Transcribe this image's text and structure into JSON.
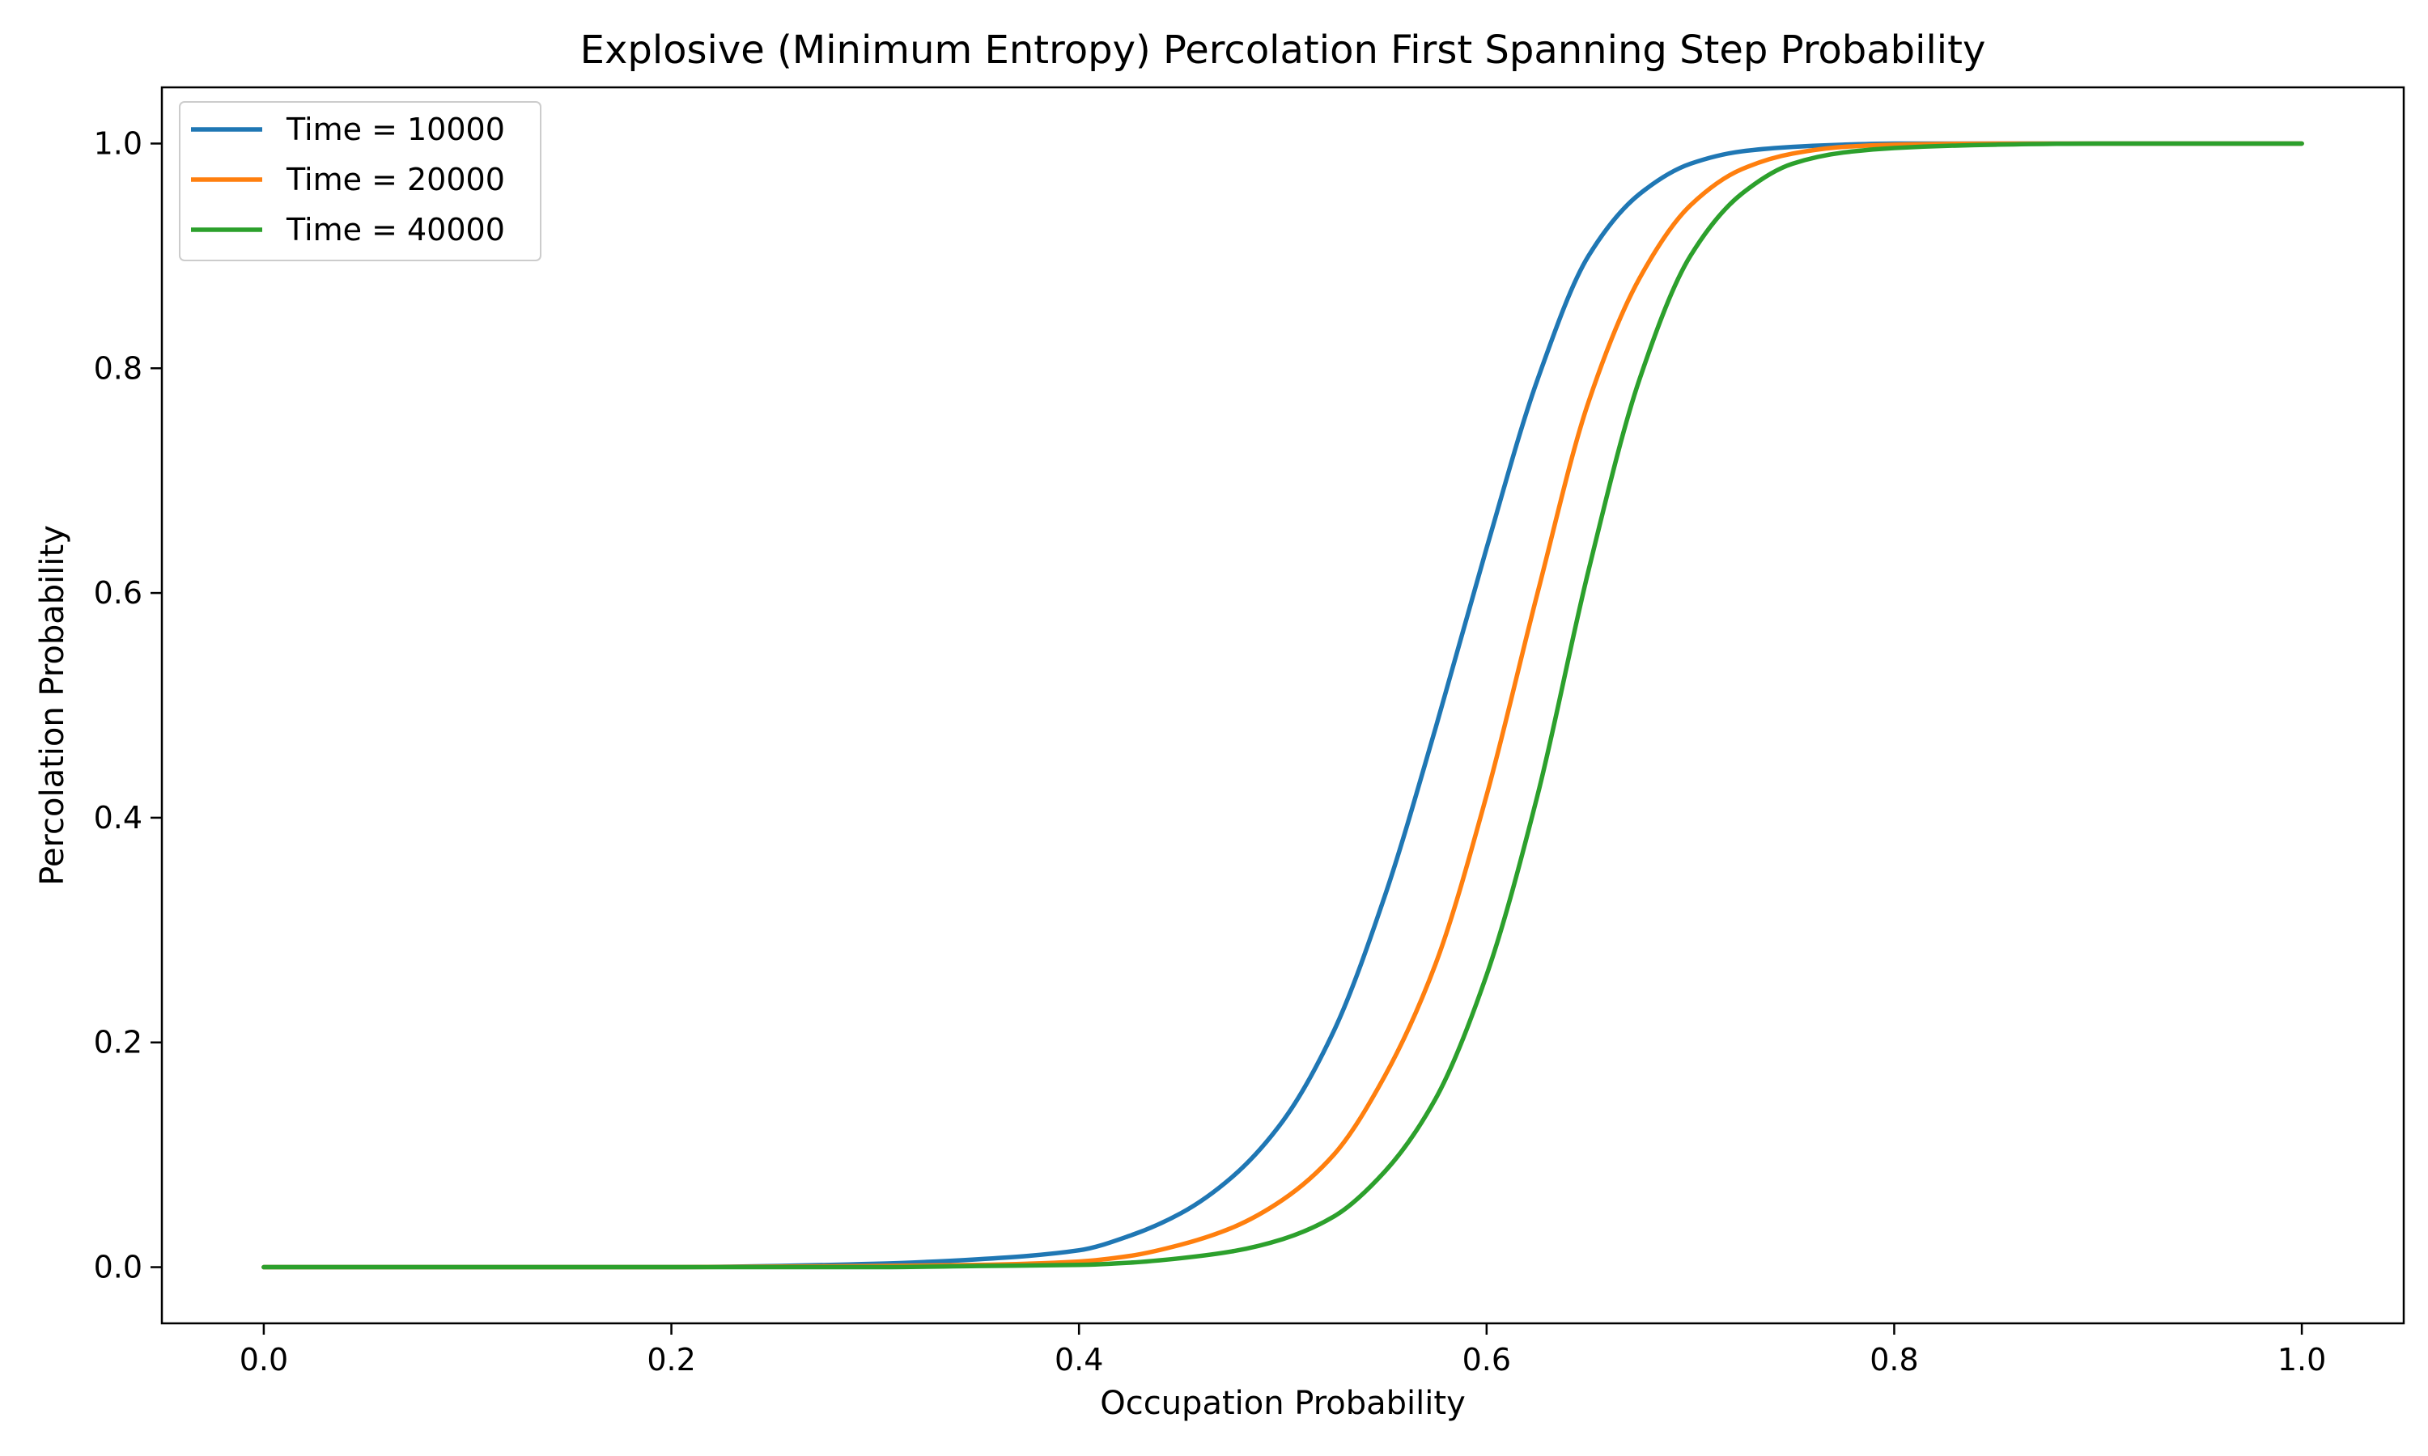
{
  "chart_data": {
    "type": "line",
    "title": "Explosive (Minimum Entropy) Percolation First Spanning Step Probability",
    "xlabel": "Occupation Probability",
    "ylabel": "Percolation Probability",
    "xlim": [
      -0.05,
      1.05
    ],
    "ylim": [
      -0.05,
      1.05
    ],
    "xticks": [
      0.0,
      0.2,
      0.4,
      0.6,
      0.8,
      1.0
    ],
    "xtick_labels": [
      "0.0",
      "0.2",
      "0.4",
      "0.6",
      "0.8",
      "1.0"
    ],
    "yticks": [
      0.0,
      0.2,
      0.4,
      0.6,
      0.8,
      1.0
    ],
    "ytick_labels": [
      "0.0",
      "0.2",
      "0.4",
      "0.6",
      "0.8",
      "1.0"
    ],
    "grid": false,
    "legend_position": "top-left",
    "x": [
      0.0,
      0.1,
      0.2,
      0.3,
      0.35,
      0.4,
      0.425,
      0.45,
      0.475,
      0.5,
      0.525,
      0.55,
      0.575,
      0.6,
      0.625,
      0.65,
      0.675,
      0.7,
      0.725,
      0.75,
      0.775,
      0.8,
      0.85,
      0.9,
      1.0
    ],
    "series": [
      {
        "name": "Time = 10000",
        "color": "#1f77b4",
        "values": [
          0.0,
          0.0,
          0.0,
          0.003,
          0.007,
          0.015,
          0.028,
          0.048,
          0.08,
          0.13,
          0.21,
          0.33,
          0.48,
          0.64,
          0.79,
          0.9,
          0.955,
          0.982,
          0.993,
          0.997,
          0.999,
          1.0,
          1.0,
          1.0,
          1.0
        ]
      },
      {
        "name": "Time = 20000",
        "color": "#ff7f0e",
        "values": [
          0.0,
          0.0,
          0.0,
          0.001,
          0.002,
          0.005,
          0.01,
          0.02,
          0.035,
          0.06,
          0.1,
          0.17,
          0.27,
          0.42,
          0.6,
          0.77,
          0.88,
          0.945,
          0.977,
          0.991,
          0.997,
          0.999,
          1.0,
          1.0,
          1.0
        ]
      },
      {
        "name": "Time = 40000",
        "color": "#2ca02c",
        "values": [
          0.0,
          0.0,
          0.0,
          0.0,
          0.001,
          0.002,
          0.004,
          0.008,
          0.014,
          0.025,
          0.045,
          0.085,
          0.15,
          0.26,
          0.42,
          0.62,
          0.79,
          0.9,
          0.955,
          0.982,
          0.992,
          0.996,
          0.999,
          1.0,
          1.0
        ]
      }
    ]
  }
}
